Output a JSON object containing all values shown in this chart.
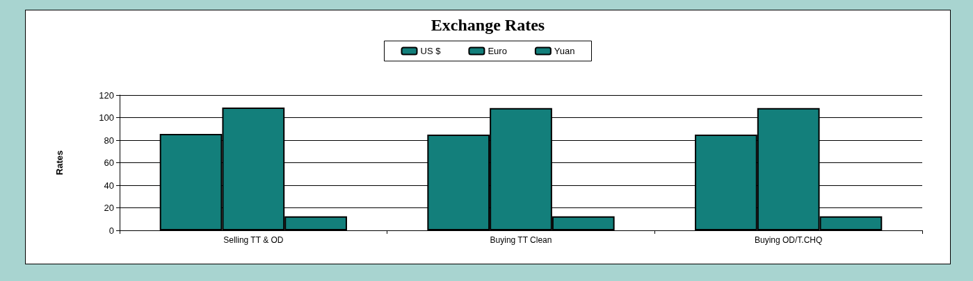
{
  "chart_data": {
    "type": "bar",
    "title": "Exchange Rates",
    "ylabel": "Rates",
    "categories": [
      "Selling TT & OD",
      "Buying TT Clean",
      "Buying OD/T.CHQ"
    ],
    "series": [
      {
        "name": "US $",
        "color": "#137f7b",
        "values": [
          85.5,
          85,
          85
        ]
      },
      {
        "name": "Euro",
        "color": "#137f7b",
        "values": [
          109,
          108.5,
          108.5
        ]
      },
      {
        "name": "Yuan",
        "color": "#137f7b",
        "values": [
          12.5,
          12.5,
          12.5
        ]
      }
    ],
    "ylim": [
      0,
      120
    ],
    "yticks": [
      0,
      20,
      40,
      60,
      80,
      100,
      120
    ],
    "grid": "y",
    "legend": "top"
  }
}
